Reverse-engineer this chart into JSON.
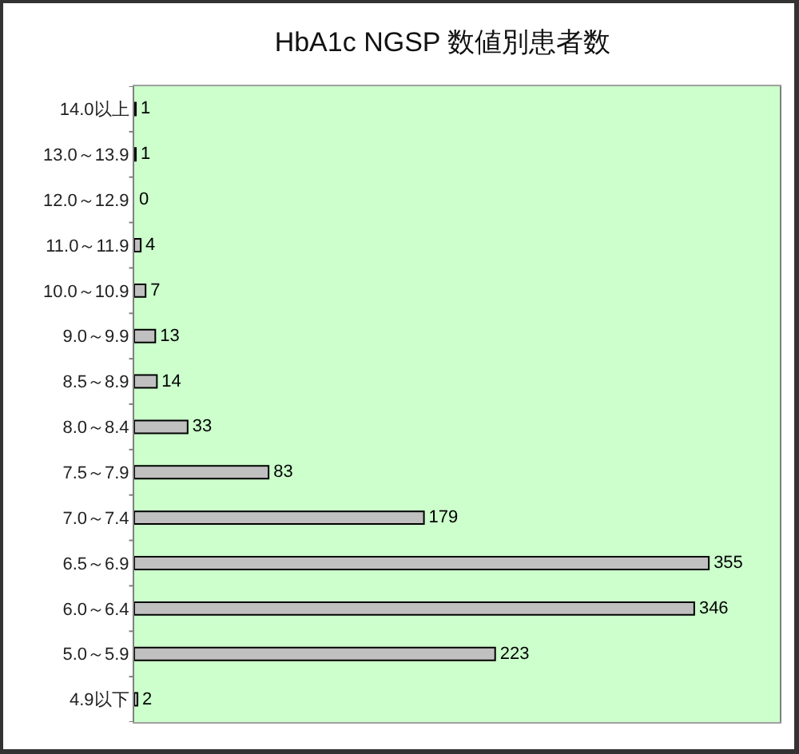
{
  "chart_data": {
    "type": "bar",
    "title": "HbA1c NGSP 数値別患者数",
    "orientation": "horizontal",
    "categories": [
      "14.0以上",
      "13.0～13.9",
      "12.0～12.9",
      "11.0～11.9",
      "10.0～10.9",
      "9.0～9.9",
      "8.5～8.9",
      "8.0～8.4",
      "7.5～7.9",
      "7.0～7.4",
      "6.5～6.9",
      "6.0～6.4",
      "5.0～5.9",
      "4.9以下"
    ],
    "values": [
      1,
      1,
      0,
      4,
      7,
      13,
      14,
      33,
      83,
      179,
      355,
      346,
      223,
      2
    ],
    "color": "#c0c0c0",
    "data_labels": true,
    "tick_labels": "y"
  }
}
